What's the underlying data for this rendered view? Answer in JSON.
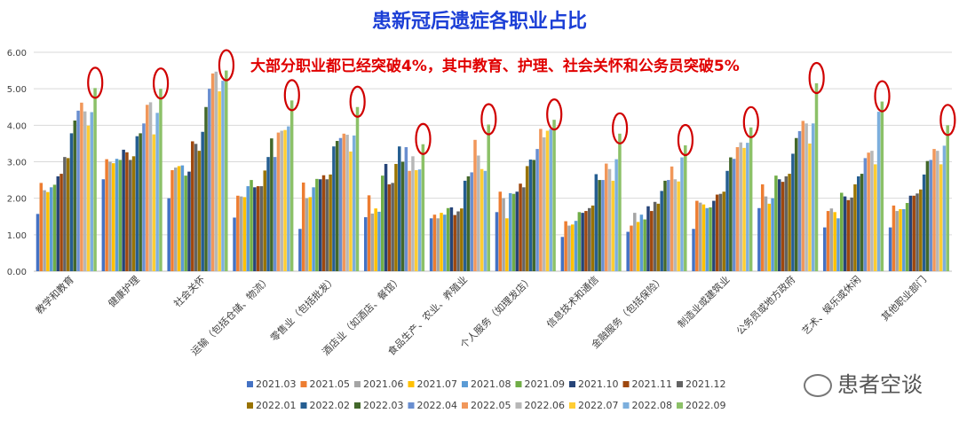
{
  "watermark": "患者空谈",
  "colors": {
    "title": "#1c3fd6",
    "annotation": "#e00000",
    "circle": "#d00000"
  },
  "chart_data": {
    "type": "bar",
    "title": "患新冠后遗症各职业占比",
    "annotation": "大部分职业都已经突破4%，其中教育、护理、社会关怀和公务员突破5%",
    "xlabel": "",
    "ylabel": "",
    "ylim": [
      0,
      6
    ],
    "yticks": [
      "0.00",
      "1.00",
      "2.00",
      "3.00",
      "4.00",
      "5.00",
      "6.00"
    ],
    "grid": true,
    "legend_position": "bottom",
    "circled_series": "2022.09",
    "categories": [
      "教学和教育",
      "健康护理",
      "社会关怀",
      "运输（包括仓储、物流）",
      "零售业（包括批发）",
      "酒店业（如酒店、餐馆）",
      "食品生产、农业、养殖业",
      "个人服务（如理发店）",
      "信息技术和通信",
      "金融服务（包括保险）",
      "制造业或建筑业",
      "公务员或地方政府",
      "艺术、娱乐或休闲",
      "其他职业部门"
    ],
    "series": [
      {
        "name": "2021.03",
        "color": "#4472c4",
        "values": [
          1.57,
          2.52,
          2.0,
          1.47,
          1.16,
          1.48,
          1.45,
          1.62,
          0.94,
          1.08,
          1.16,
          1.73,
          1.2,
          1.2
        ]
      },
      {
        "name": "2021.05",
        "color": "#ed7d31",
        "values": [
          2.42,
          3.07,
          2.77,
          2.07,
          2.43,
          2.08,
          1.55,
          2.18,
          1.37,
          1.25,
          1.93,
          2.38,
          1.65,
          1.8
        ]
      },
      {
        "name": "2021.06",
        "color": "#a5a5a5",
        "values": [
          2.22,
          3.0,
          2.84,
          2.05,
          2.0,
          1.58,
          1.45,
          2.0,
          1.25,
          1.6,
          1.88,
          2.05,
          1.72,
          1.65
        ]
      },
      {
        "name": "2021.07",
        "color": "#ffc000",
        "values": [
          2.17,
          2.96,
          2.88,
          2.03,
          2.03,
          1.72,
          1.6,
          1.45,
          1.28,
          1.35,
          1.83,
          1.85,
          1.62,
          1.7
        ]
      },
      {
        "name": "2021.08",
        "color": "#5b9bd5",
        "values": [
          2.3,
          3.08,
          2.9,
          2.33,
          2.3,
          1.63,
          1.55,
          2.14,
          1.38,
          1.55,
          1.73,
          2.0,
          1.45,
          1.7
        ]
      },
      {
        "name": "2021.09",
        "color": "#70ad47",
        "values": [
          2.37,
          3.05,
          2.62,
          2.5,
          2.53,
          2.62,
          1.73,
          2.12,
          1.62,
          1.42,
          1.75,
          2.62,
          2.15,
          1.87
        ]
      },
      {
        "name": "2021.10",
        "color": "#264478",
        "values": [
          2.6,
          3.33,
          2.73,
          2.3,
          2.52,
          2.94,
          1.75,
          2.18,
          1.6,
          1.78,
          1.93,
          2.52,
          2.05,
          2.07
        ]
      },
      {
        "name": "2021.11",
        "color": "#9e480e",
        "values": [
          2.67,
          3.26,
          3.56,
          2.33,
          2.63,
          2.38,
          1.54,
          2.4,
          1.65,
          1.65,
          2.1,
          2.45,
          1.95,
          2.07
        ]
      },
      {
        "name": "2021.12",
        "color": "#636363",
        "values": [
          3.13,
          3.05,
          3.49,
          2.33,
          2.52,
          2.42,
          1.64,
          2.3,
          1.73,
          1.9,
          2.12,
          2.6,
          2.02,
          2.13
        ]
      },
      {
        "name": "2022.01",
        "color": "#997300",
        "values": [
          3.1,
          3.15,
          3.3,
          2.76,
          2.65,
          2.94,
          1.72,
          2.88,
          1.8,
          1.85,
          2.18,
          2.67,
          2.38,
          2.24
        ]
      },
      {
        "name": "2022.02",
        "color": "#255e91",
        "values": [
          3.78,
          3.7,
          3.82,
          3.13,
          3.42,
          3.42,
          2.48,
          3.06,
          2.66,
          2.2,
          2.75,
          3.22,
          2.6,
          2.65
        ]
      },
      {
        "name": "2022.03",
        "color": "#43682b",
        "values": [
          4.13,
          3.78,
          4.5,
          3.64,
          3.57,
          3.0,
          2.6,
          3.05,
          2.5,
          2.48,
          3.12,
          3.65,
          2.67,
          3.02
        ]
      },
      {
        "name": "2022.04",
        "color": "#698ed0",
        "values": [
          4.4,
          4.05,
          5.0,
          3.13,
          3.65,
          3.4,
          2.71,
          3.35,
          2.5,
          2.5,
          3.08,
          3.84,
          3.1,
          3.05
        ]
      },
      {
        "name": "2022.05",
        "color": "#f1975a",
        "values": [
          4.62,
          4.56,
          5.42,
          3.8,
          3.77,
          2.75,
          3.6,
          3.9,
          2.95,
          2.87,
          3.4,
          4.12,
          3.25,
          3.35
        ]
      },
      {
        "name": "2022.06",
        "color": "#b7b7b7",
        "values": [
          4.38,
          4.63,
          5.47,
          3.85,
          3.74,
          3.15,
          3.17,
          3.67,
          2.8,
          2.52,
          3.53,
          4.05,
          3.3,
          3.3
        ]
      },
      {
        "name": "2022.07",
        "color": "#ffcd33",
        "values": [
          3.99,
          3.75,
          4.93,
          3.87,
          3.28,
          2.77,
          2.8,
          3.85,
          2.48,
          2.46,
          3.38,
          3.5,
          2.93,
          2.93
        ]
      },
      {
        "name": "2022.08",
        "color": "#7cafdd",
        "values": [
          4.36,
          4.34,
          5.22,
          3.97,
          3.72,
          2.79,
          2.75,
          3.9,
          3.07,
          3.12,
          3.52,
          4.05,
          4.37,
          3.44
        ]
      },
      {
        "name": "2022.09",
        "color": "#8cc168",
        "values": [
          5.02,
          5.0,
          5.5,
          4.68,
          4.5,
          3.48,
          4.02,
          4.15,
          3.77,
          3.45,
          3.94,
          5.15,
          4.65,
          4.0
        ]
      }
    ]
  }
}
